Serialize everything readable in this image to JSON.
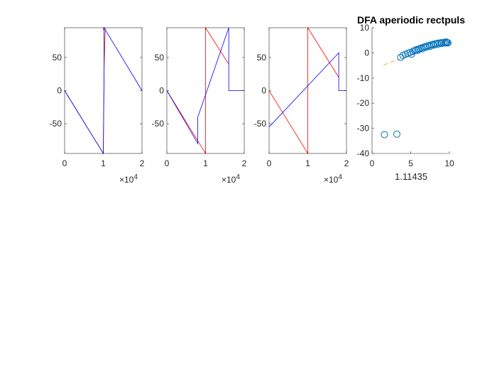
{
  "figure": {
    "background": "#ffffff"
  },
  "colors": {
    "red": "#ff0000",
    "blue": "#0000ff",
    "marker": "#0072bd",
    "fit": "#edb120",
    "axis": "#262626"
  },
  "chart_data": [
    {
      "type": "line",
      "xlim": [
        0,
        20000
      ],
      "ylim": [
        -95,
        95
      ],
      "x_ticks": [
        0,
        10000,
        20000
      ],
      "x_tick_labels": [
        "0",
        "1",
        "2"
      ],
      "y_ticks": [
        -50,
        0,
        50
      ],
      "y_tick_labels": [
        "-50",
        "0",
        "50"
      ],
      "x_exponent_base": "×10",
      "x_exponent_power": "4",
      "series": [
        {
          "color": "red",
          "x": [
            0,
            10000,
            10000,
            10200,
            10200,
            10500
          ],
          "y": [
            0,
            -95,
            -95,
            30,
            30,
            95
          ]
        },
        {
          "color": "blue",
          "x": [
            0,
            10000,
            10000,
            10200,
            10200,
            20000
          ],
          "y": [
            0,
            -95,
            -95,
            30,
            95,
            0
          ]
        }
      ]
    },
    {
      "type": "line",
      "xlim": [
        0,
        20000
      ],
      "ylim": [
        -95,
        95
      ],
      "x_ticks": [
        0,
        10000,
        20000
      ],
      "x_tick_labels": [
        "0",
        "1",
        "2"
      ],
      "y_ticks": [
        -50,
        0,
        50
      ],
      "y_tick_labels": [
        "-50",
        "0",
        "50"
      ],
      "x_exponent_base": "×10",
      "x_exponent_power": "4",
      "series": [
        {
          "color": "red",
          "x": [
            0,
            10000,
            10000,
            16000
          ],
          "y": [
            0,
            -95,
            95,
            40
          ]
        },
        {
          "color": "blue",
          "x": [
            0,
            8000,
            8000,
            16000,
            16000,
            20000
          ],
          "y": [
            0,
            -80,
            -40,
            95,
            0,
            0
          ]
        }
      ]
    },
    {
      "type": "line",
      "xlim": [
        0,
        20000
      ],
      "ylim": [
        -95,
        95
      ],
      "x_ticks": [
        0,
        10000,
        20000
      ],
      "x_tick_labels": [
        "0",
        "1",
        "2"
      ],
      "y_ticks": [
        -50,
        0,
        50
      ],
      "y_tick_labels": [
        "-50",
        "0",
        "50"
      ],
      "x_exponent_base": "×10",
      "x_exponent_power": "4",
      "series": [
        {
          "color": "red",
          "x": [
            0,
            10000,
            10000,
            18000
          ],
          "y": [
            0,
            -95,
            95,
            20
          ]
        },
        {
          "color": "blue",
          "x": [
            0,
            18000,
            18000,
            18000,
            20000
          ],
          "y": [
            -55,
            57,
            20,
            0,
            0
          ]
        }
      ]
    },
    {
      "type": "scatter",
      "title": "DFA aperiodic rectpuls",
      "xlabel": "1.11435",
      "xlim": [
        0,
        10
      ],
      "ylim": [
        -40,
        10
      ],
      "x_ticks": [
        0,
        5,
        10
      ],
      "y_ticks": [
        -40,
        -30,
        -20,
        -10,
        0,
        10
      ],
      "points": [
        [
          1.6,
          -32.5
        ],
        [
          3.2,
          -32.3
        ],
        [
          3.7,
          -1.8
        ],
        [
          4.0,
          -1.0
        ],
        [
          4.3,
          -0.6
        ],
        [
          4.6,
          -0.2
        ],
        [
          4.9,
          0.2
        ],
        [
          5.1,
          -0.5
        ],
        [
          5.3,
          0.6
        ],
        [
          5.5,
          0.9
        ],
        [
          5.7,
          1.2
        ],
        [
          5.9,
          1.0
        ],
        [
          6.0,
          1.5
        ],
        [
          6.2,
          1.7
        ],
        [
          6.4,
          2.0
        ],
        [
          6.5,
          1.6
        ],
        [
          6.7,
          2.3
        ],
        [
          6.9,
          2.5
        ],
        [
          7.0,
          2.2
        ],
        [
          7.2,
          2.8
        ],
        [
          7.4,
          3.0
        ],
        [
          7.5,
          2.6
        ],
        [
          7.7,
          3.2
        ],
        [
          7.9,
          3.4
        ],
        [
          8.0,
          3.1
        ],
        [
          8.2,
          3.6
        ],
        [
          8.4,
          3.8
        ],
        [
          8.5,
          3.4
        ],
        [
          8.7,
          3.9
        ],
        [
          8.9,
          4.0
        ],
        [
          9.0,
          3.7
        ],
        [
          9.2,
          4.1
        ],
        [
          9.4,
          4.2
        ],
        [
          9.5,
          3.9
        ],
        [
          9.6,
          4.3
        ],
        [
          9.7,
          4.1
        ],
        [
          9.8,
          4.0
        ]
      ],
      "fit_line": {
        "x": [
          1.5,
          9.8
        ],
        "y": [
          -4.8,
          4.6
        ]
      }
    }
  ]
}
